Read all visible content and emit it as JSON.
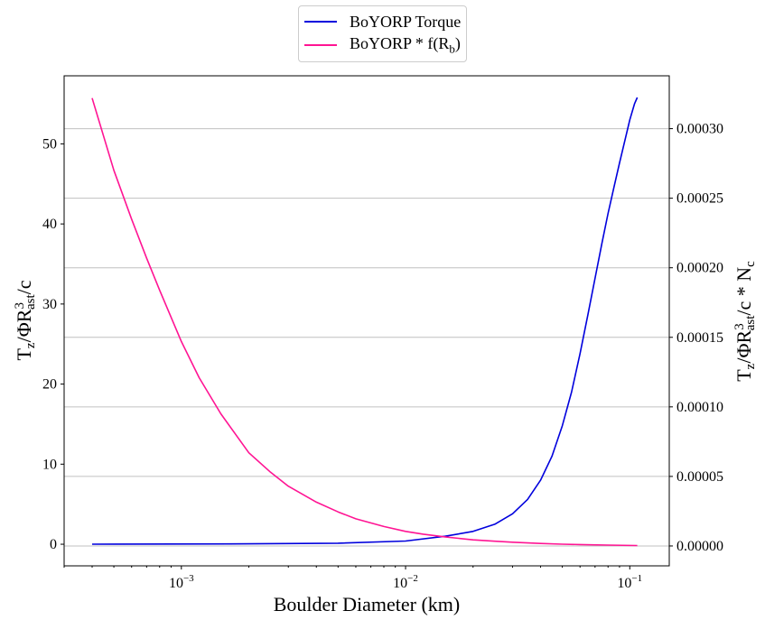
{
  "chart_data": {
    "type": "line",
    "xscale": "log",
    "xlim": [
      0.0003,
      0.15
    ],
    "xlabel": "Boulder Diameter (km)",
    "xticks": [
      {
        "value": 0.001,
        "base": "10",
        "exp": "−3"
      },
      {
        "value": 0.01,
        "base": "10",
        "exp": "−2"
      },
      {
        "value": 0.1,
        "base": "10",
        "exp": "−1"
      }
    ],
    "y_left": {
      "label": {
        "main": "T",
        "sub1": "z",
        "mid": "/ΦR",
        "sup": "3",
        "sub2": "ast",
        "tail": "/c"
      },
      "ylim": [
        -2.7,
        58.5
      ],
      "ticks": [
        "0",
        "10",
        "20",
        "30",
        "40",
        "50"
      ]
    },
    "y_right": {
      "label": {
        "main": "T",
        "sub1": "z",
        "mid": "/ΦR",
        "sup": "3",
        "sub2": "ast",
        "tail": "/c * N",
        "sub3": "c"
      },
      "ylim": [
        -1.43e-05,
        0.000338
      ],
      "ticks": [
        "0.00000",
        "0.00005",
        "0.00010",
        "0.00015",
        "0.00020",
        "0.00025",
        "0.00030"
      ],
      "grid": true
    },
    "series": [
      {
        "name": "BoYORP Torque",
        "axis": "left",
        "color": "#0000dd",
        "x": [
          0.0004,
          0.002,
          0.005,
          0.01,
          0.015,
          0.02,
          0.025,
          0.03,
          0.035,
          0.04,
          0.045,
          0.05,
          0.055,
          0.06,
          0.065,
          0.07,
          0.075,
          0.08,
          0.085,
          0.09,
          0.095,
          0.1,
          0.105,
          0.108
        ],
        "values": [
          0.0,
          0.05,
          0.13,
          0.4,
          1.0,
          1.6,
          2.5,
          3.8,
          5.6,
          8.0,
          11.0,
          14.8,
          19.0,
          23.8,
          28.6,
          33.2,
          37.5,
          41.3,
          44.6,
          47.6,
          50.4,
          53.0,
          55.0,
          55.8
        ]
      },
      {
        "name": "BoYORP * f(R",
        "name_sub": "b",
        "name_tail": ")",
        "axis": "right",
        "color": "#ff1493",
        "x": [
          0.0004,
          0.0005,
          0.0006,
          0.0007,
          0.0008,
          0.001,
          0.0012,
          0.0015,
          0.002,
          0.0025,
          0.003,
          0.004,
          0.005,
          0.006,
          0.008,
          0.01,
          0.012,
          0.015,
          0.02,
          0.025,
          0.03,
          0.04,
          0.05,
          0.06,
          0.08,
          0.108
        ],
        "values": [
          0.000322,
          0.00027,
          0.000235,
          0.000207,
          0.000184,
          0.000147,
          0.000121,
          9.5e-05,
          6.7e-05,
          5.3e-05,
          4.3e-05,
          3.15e-05,
          2.45e-05,
          1.95e-05,
          1.4e-05,
          1.05e-05,
          8.5e-06,
          6.5e-06,
          4.4e-06,
          3.4e-06,
          2.7e-06,
          1.8e-06,
          1.3e-06,
          1e-06,
          6e-07,
          3e-07
        ]
      }
    ]
  }
}
